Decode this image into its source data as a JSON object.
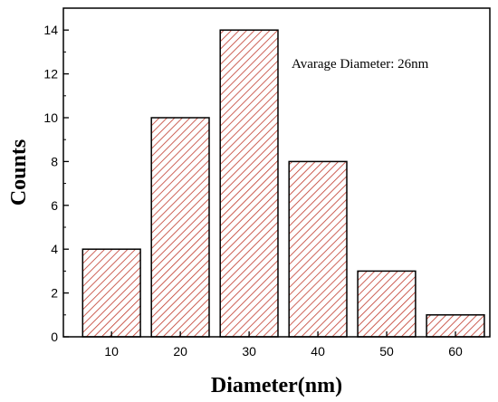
{
  "chart_data": {
    "type": "bar",
    "categories": [
      "10",
      "20",
      "30",
      "40",
      "50",
      "60"
    ],
    "x": [
      10,
      20,
      30,
      40,
      50,
      60
    ],
    "values": [
      4,
      10,
      14,
      8,
      3,
      1
    ],
    "title": "",
    "xlabel": "Diameter(nm)",
    "ylabel": "Counts",
    "xlim": [
      3,
      65
    ],
    "ylim": [
      0,
      15
    ],
    "yticks": [
      0,
      2,
      4,
      6,
      8,
      10,
      12,
      14
    ],
    "xticks": [
      10,
      20,
      30,
      40,
      50,
      60
    ],
    "grid": false,
    "bar_fill": "hatched",
    "colors": {
      "bar_stroke": "#000000",
      "hatch": "#c0392b",
      "bar_bg": "#ffffff"
    },
    "annotation": "Avarage Diameter: 26nm"
  }
}
